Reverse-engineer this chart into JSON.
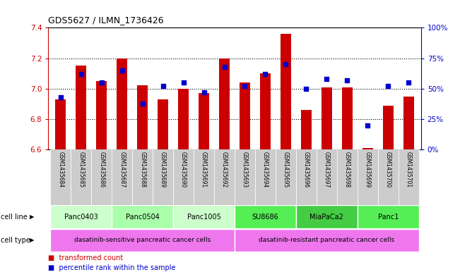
{
  "title": "GDS5627 / ILMN_1736426",
  "samples": [
    "GSM1435684",
    "GSM1435685",
    "GSM1435686",
    "GSM1435687",
    "GSM1435688",
    "GSM1435689",
    "GSM1435690",
    "GSM1435691",
    "GSM1435692",
    "GSM1435693",
    "GSM1435694",
    "GSM1435695",
    "GSM1435696",
    "GSM1435697",
    "GSM1435698",
    "GSM1435699",
    "GSM1435700",
    "GSM1435701"
  ],
  "bar_values": [
    6.93,
    7.15,
    7.05,
    7.2,
    7.02,
    6.93,
    7.0,
    6.97,
    7.2,
    7.04,
    7.1,
    7.36,
    6.86,
    7.01,
    7.01,
    6.61,
    6.89,
    6.95
  ],
  "percentile_values": [
    43,
    62,
    55,
    65,
    38,
    52,
    55,
    47,
    68,
    52,
    62,
    70,
    50,
    58,
    57,
    20,
    52,
    55
  ],
  "bar_color": "#cc0000",
  "percentile_color": "#0000cc",
  "ylim_left": [
    6.6,
    7.4
  ],
  "ylim_right": [
    0,
    100
  ],
  "yticks_left": [
    6.6,
    6.8,
    7.0,
    7.2,
    7.4
  ],
  "yticks_right": [
    0,
    25,
    50,
    75,
    100
  ],
  "ytick_labels_right": [
    "0%",
    "25%",
    "50%",
    "75%",
    "100%"
  ],
  "hgrid_lines": [
    6.8,
    7.0,
    7.2
  ],
  "cell_lines": [
    {
      "name": "Panc0403",
      "start": 0,
      "end": 3,
      "color": "#ccffcc"
    },
    {
      "name": "Panc0504",
      "start": 3,
      "end": 6,
      "color": "#aaffaa"
    },
    {
      "name": "Panc1005",
      "start": 6,
      "end": 9,
      "color": "#ccffcc"
    },
    {
      "name": "SU8686",
      "start": 9,
      "end": 12,
      "color": "#55ee55"
    },
    {
      "name": "MiaPaCa2",
      "start": 12,
      "end": 15,
      "color": "#44cc44"
    },
    {
      "name": "Panc1",
      "start": 15,
      "end": 18,
      "color": "#55ee55"
    }
  ],
  "cell_types": [
    {
      "name": "dasatinib-sensitive pancreatic cancer cells",
      "start": 0,
      "end": 9,
      "color": "#ee77ee"
    },
    {
      "name": "dasatinib-resistant pancreatic cancer cells",
      "start": 9,
      "end": 18,
      "color": "#ee77ee"
    }
  ],
  "sample_bg_color": "#cccccc",
  "background_color": "#ffffff",
  "tick_color_left": "#cc0000",
  "tick_color_right": "#0000cc",
  "legend_red_label": "transformed count",
  "legend_blue_label": "percentile rank within the sample",
  "cell_line_label": "cell line",
  "cell_type_label": "cell type"
}
